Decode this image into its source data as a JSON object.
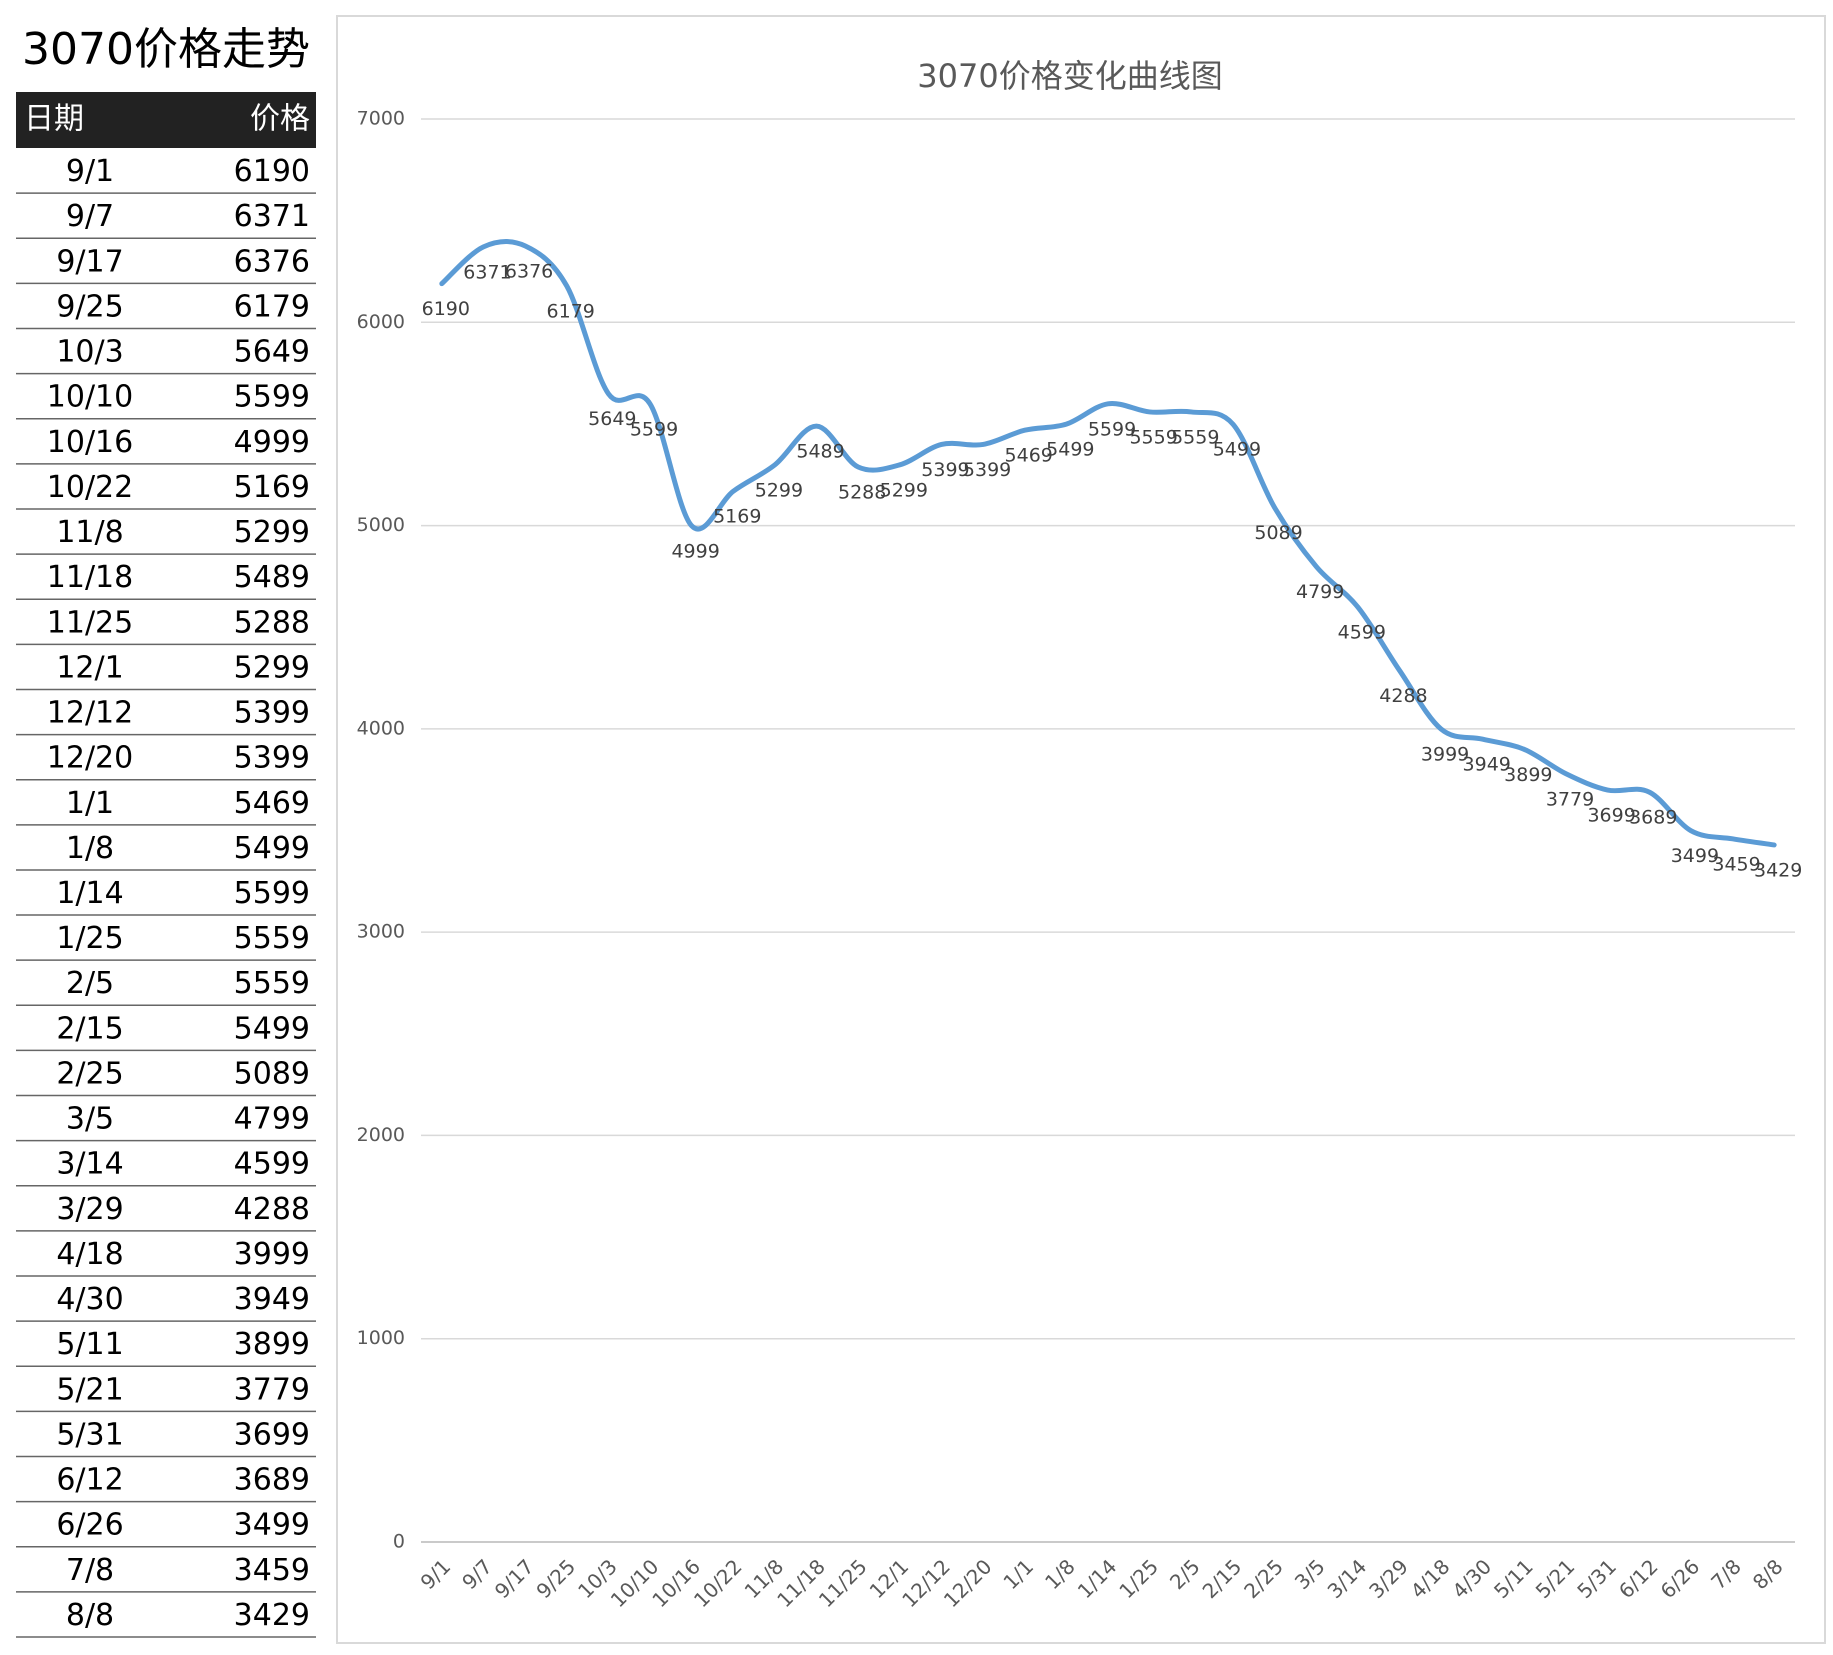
{
  "table": {
    "title": "3070价格走势",
    "header": [
      "日期",
      "价格"
    ]
  },
  "chart_data": {
    "type": "line",
    "title": "3070价格变化曲线图",
    "categories": [
      "9/1",
      "9/7",
      "9/17",
      "9/25",
      "10/3",
      "10/10",
      "10/16",
      "10/22",
      "11/8",
      "11/18",
      "11/25",
      "12/1",
      "12/12",
      "12/20",
      "1/1",
      "1/8",
      "1/14",
      "1/25",
      "2/5",
      "2/15",
      "2/25",
      "3/5",
      "3/14",
      "3/29",
      "4/18",
      "4/30",
      "5/11",
      "5/21",
      "5/31",
      "6/12",
      "6/26",
      "7/8",
      "8/8"
    ],
    "series": [
      {
        "name": "价格",
        "color": "#5b9bd5",
        "values": [
          6190,
          6371,
          6376,
          6179,
          5649,
          5599,
          4999,
          5169,
          5299,
          5489,
          5288,
          5299,
          5399,
          5399,
          5469,
          5499,
          5599,
          5559,
          5559,
          5499,
          5089,
          4799,
          4599,
          4288,
          3999,
          3949,
          3899,
          3779,
          3699,
          3689,
          3499,
          3459,
          3429
        ]
      }
    ],
    "ylim": [
      0,
      7000
    ],
    "yticks": [
      0,
      1000,
      2000,
      3000,
      4000,
      5000,
      6000,
      7000
    ],
    "grid": true,
    "smooth": true
  }
}
